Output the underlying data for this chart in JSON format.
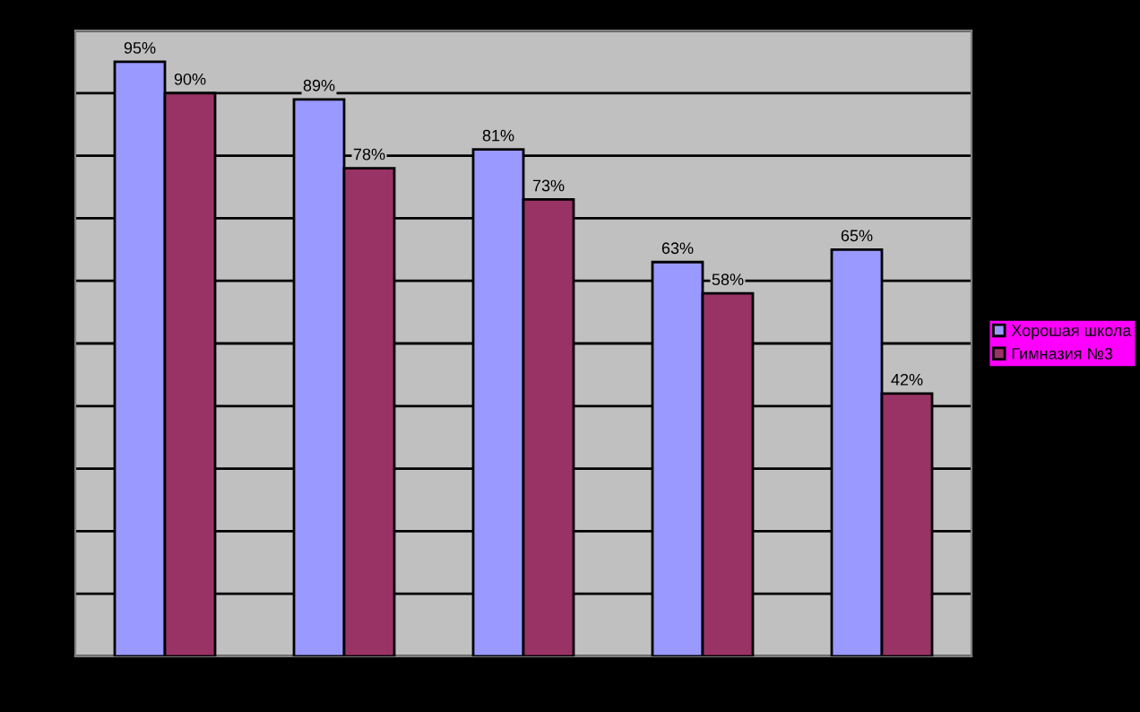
{
  "chart_data": {
    "type": "bar",
    "categories": [
      null,
      null,
      null,
      null,
      null
    ],
    "series": [
      {
        "name": "Хорошая школа",
        "color": "#9999ff",
        "values": [
          95,
          89,
          81,
          63,
          65
        ],
        "value_labels": [
          "95%",
          "89%",
          "81%",
          "63%",
          "65%"
        ]
      },
      {
        "name": "Гимназия №3",
        "color": "#993366",
        "values": [
          90,
          78,
          73,
          58,
          42
        ],
        "value_labels": [
          "90%",
          "78%",
          "73%",
          "58%",
          "42%"
        ]
      }
    ],
    "ylim": [
      0,
      100
    ],
    "yticks": [
      {
        "value": 0,
        "label": null
      },
      {
        "value": 10,
        "label": null
      },
      {
        "value": 20,
        "label": null
      },
      {
        "value": 30,
        "label": null
      },
      {
        "value": 40,
        "label": null
      },
      {
        "value": 50,
        "label": null
      },
      {
        "value": 60,
        "label": null
      },
      {
        "value": 70,
        "label": null
      },
      {
        "value": 80,
        "label": null
      },
      {
        "value": 90,
        "label": null
      },
      {
        "value": 100,
        "label": null
      }
    ],
    "grid": "y",
    "legend": "right"
  }
}
